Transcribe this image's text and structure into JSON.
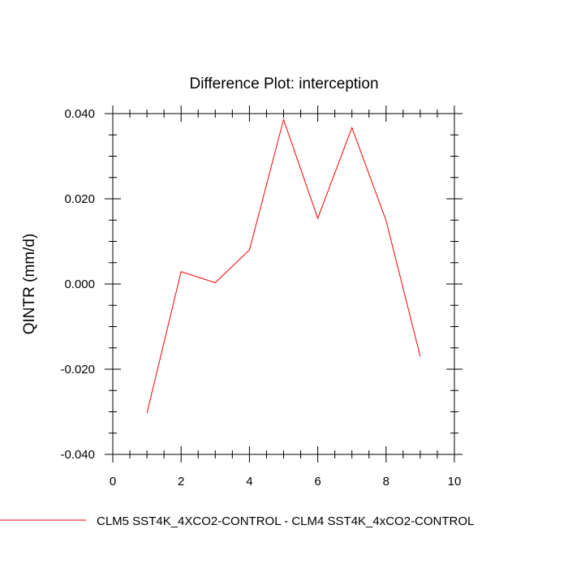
{
  "chart_data": {
    "type": "line",
    "title": "Difference Plot: interception",
    "xlabel": "",
    "ylabel": "QINTR  (mm/d)",
    "xlim": [
      0,
      10
    ],
    "ylim": [
      -0.04,
      0.04
    ],
    "x_ticks": [
      0,
      2,
      4,
      6,
      8,
      10
    ],
    "x_tick_labels": [
      "0",
      "2",
      "4",
      "6",
      "8",
      "10"
    ],
    "y_ticks": [
      -0.04,
      -0.02,
      0,
      0.02,
      0.04
    ],
    "y_tick_labels": [
      "-0.040",
      "-0.020",
      "0.000",
      "0.020",
      "0.040"
    ],
    "grid": false,
    "legend_position": "bottom",
    "series": [
      {
        "name": "CLM5 SST4K_4XCO2-CONTROL - CLM4 SST4K_4xCO2-CONTROL",
        "color": "#ff0000",
        "x": [
          1,
          2,
          3,
          4,
          5,
          6,
          7,
          8,
          9
        ],
        "values": [
          -0.0303,
          0.0029,
          0.0003,
          0.008,
          0.0386,
          0.0154,
          0.0367,
          0.0149,
          -0.017
        ]
      }
    ]
  }
}
